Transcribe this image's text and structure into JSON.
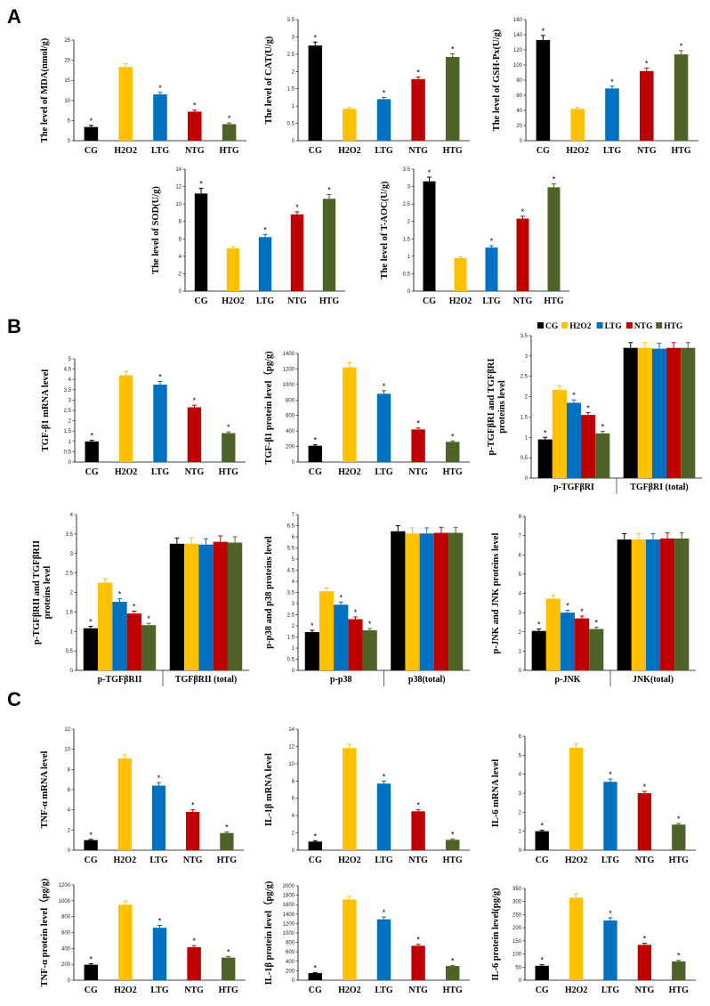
{
  "sections": {
    "a": "A",
    "b": "B",
    "c": "C"
  },
  "colors": {
    "CG": "#000000",
    "H2O2": "#ffc000",
    "LTG": "#0070c0",
    "NTG": "#c00000",
    "HTG": "#4f6228"
  },
  "legend": [
    "CG",
    "H2O2",
    "LTG",
    "NTG",
    "HTG"
  ],
  "chart_data": [
    {
      "id": "mda",
      "type": "bar",
      "section": "A",
      "ylabel": "The level of MDA(nmol/g)",
      "categories": [
        "CG",
        "H2O2",
        "LTG",
        "NTG",
        "HTG"
      ],
      "values": [
        3.4,
        18.3,
        11.5,
        7.2,
        4.1
      ],
      "errors": [
        0.4,
        0.8,
        0.5,
        0.4,
        0.3
      ],
      "stars": [
        true,
        false,
        true,
        true,
        true
      ],
      "ylim": [
        0,
        25
      ],
      "yticks": [
        0,
        5,
        10,
        15,
        20,
        25
      ]
    },
    {
      "id": "cat",
      "type": "bar",
      "section": "A",
      "ylabel": "The level of CAT(U/g)",
      "categories": [
        "CG",
        "H2O2",
        "LTG",
        "NTG",
        "HTG"
      ],
      "values": [
        2.75,
        0.92,
        1.2,
        1.78,
        2.42
      ],
      "errors": [
        0.1,
        0.04,
        0.05,
        0.06,
        0.09
      ],
      "stars": [
        true,
        false,
        true,
        true,
        true
      ],
      "ylim": [
        0,
        3.5
      ],
      "yticks": [
        0,
        0.5,
        1,
        1.5,
        2,
        2.5,
        3,
        3.5
      ]
    },
    {
      "id": "gsh",
      "type": "bar",
      "section": "A",
      "ylabel": "The level of GSH-Px(U/g)",
      "categories": [
        "CG",
        "H2O2",
        "LTG",
        "NTG",
        "HTG"
      ],
      "values": [
        133,
        42,
        69,
        92,
        114
      ],
      "errors": [
        6,
        2,
        3,
        4,
        5
      ],
      "stars": [
        true,
        false,
        true,
        true,
        true
      ],
      "ylim": [
        0,
        160
      ],
      "yticks": [
        0,
        20,
        40,
        60,
        80,
        100,
        120,
        140,
        160
      ]
    },
    {
      "id": "sod",
      "type": "bar",
      "section": "A",
      "ylabel": "The level of SOD(U/g)",
      "categories": [
        "CG",
        "H2O2",
        "LTG",
        "NTG",
        "HTG"
      ],
      "values": [
        11.2,
        4.9,
        6.2,
        8.8,
        10.6
      ],
      "errors": [
        0.6,
        0.2,
        0.3,
        0.3,
        0.5
      ],
      "stars": [
        true,
        false,
        true,
        true,
        true
      ],
      "ylim": [
        0,
        14
      ],
      "yticks": [
        0,
        2,
        4,
        6,
        8,
        10,
        12,
        14
      ]
    },
    {
      "id": "taoc",
      "type": "bar",
      "section": "A",
      "ylabel": "The level of T-AOC(U/g)",
      "categories": [
        "CG",
        "H2O2",
        "LTG",
        "NTG",
        "HTG"
      ],
      "values": [
        3.15,
        0.95,
        1.25,
        2.08,
        2.98
      ],
      "errors": [
        0.12,
        0.04,
        0.05,
        0.07,
        0.1
      ],
      "stars": [
        true,
        false,
        true,
        true,
        true
      ],
      "ylim": [
        0,
        3.5
      ],
      "yticks": [
        0,
        0.5,
        1,
        1.5,
        2,
        2.5,
        3,
        3.5
      ]
    },
    {
      "id": "tgfmrna",
      "type": "bar",
      "section": "B",
      "ylabel": "TGF-β1 mRNA level",
      "categories": [
        "CG",
        "H2O2",
        "LTG",
        "NTG",
        "HTG"
      ],
      "values": [
        1.0,
        4.2,
        3.75,
        2.65,
        1.4
      ],
      "errors": [
        0.06,
        0.18,
        0.15,
        0.1,
        0.06
      ],
      "stars": [
        true,
        false,
        true,
        true,
        true
      ],
      "ylim": [
        0,
        5
      ],
      "yticks": [
        0,
        0.5,
        1,
        1.5,
        2,
        2.5,
        3,
        3.5,
        4,
        4.5,
        5
      ]
    },
    {
      "id": "tgfprot",
      "type": "bar",
      "section": "B",
      "ylabel": "TGF-β1 protein level（pg/g)",
      "categories": [
        "CG",
        "H2O2",
        "LTG",
        "NTG",
        "HTG"
      ],
      "values": [
        210,
        1220,
        880,
        420,
        260
      ],
      "errors": [
        12,
        60,
        40,
        20,
        12
      ],
      "stars": [
        true,
        false,
        true,
        true,
        true
      ],
      "ylim": [
        0,
        1400
      ],
      "yticks": [
        0,
        200,
        400,
        600,
        800,
        1000,
        1200,
        1400
      ]
    },
    {
      "id": "tgfbri",
      "type": "grouped",
      "section": "B",
      "ylabel": [
        "p-TGFβRI and TGFβRI",
        "proteins level"
      ],
      "groups": [
        "p-TGFβRI",
        "TGFβRI (total)"
      ],
      "legend_pos": "top",
      "series": [
        {
          "name": "CG",
          "values": [
            0.95,
            3.2
          ],
          "errors": [
            0.05,
            0.13
          ],
          "stars": [
            true,
            false
          ]
        },
        {
          "name": "H2O2",
          "values": [
            2.17,
            3.2
          ],
          "errors": [
            0.1,
            0.13
          ],
          "stars": [
            false,
            false
          ]
        },
        {
          "name": "LTG",
          "values": [
            1.85,
            3.18
          ],
          "errors": [
            0.07,
            0.13
          ],
          "stars": [
            true,
            false
          ]
        },
        {
          "name": "NTG",
          "values": [
            1.55,
            3.2
          ],
          "errors": [
            0.06,
            0.13
          ],
          "stars": [
            true,
            false
          ]
        },
        {
          "name": "HTG",
          "values": [
            1.1,
            3.2
          ],
          "errors": [
            0.05,
            0.13
          ],
          "stars": [
            true,
            false
          ]
        }
      ],
      "ylim": [
        0,
        3.5
      ],
      "yticks": [
        0,
        0.5,
        1,
        1.5,
        2,
        2.5,
        3,
        3.5
      ]
    },
    {
      "id": "tgfbrii",
      "type": "grouped",
      "section": "B",
      "ylabel": [
        "p-TGFβRII and TGFβRII",
        "proteins level"
      ],
      "groups": [
        "p-TGFβRII",
        "TGFβRII (total)"
      ],
      "series": [
        {
          "name": "CG",
          "values": [
            1.08,
            3.25
          ],
          "errors": [
            0.05,
            0.15
          ],
          "stars": [
            true,
            false
          ]
        },
        {
          "name": "H2O2",
          "values": [
            2.25,
            3.25
          ],
          "errors": [
            0.1,
            0.15
          ],
          "stars": [
            false,
            false
          ]
        },
        {
          "name": "LTG",
          "values": [
            1.76,
            3.23
          ],
          "errors": [
            0.08,
            0.15
          ],
          "stars": [
            true,
            false
          ]
        },
        {
          "name": "NTG",
          "values": [
            1.46,
            3.3
          ],
          "errors": [
            0.06,
            0.15
          ],
          "stars": [
            true,
            false
          ]
        },
        {
          "name": "HTG",
          "values": [
            1.16,
            3.28
          ],
          "errors": [
            0.05,
            0.15
          ],
          "stars": [
            true,
            false
          ]
        }
      ],
      "ylim": [
        0,
        4
      ],
      "yticks": [
        0,
        0.5,
        1,
        1.5,
        2,
        2.5,
        3,
        3.5,
        4
      ]
    },
    {
      "id": "p38",
      "type": "grouped",
      "section": "B",
      "ylabel": [
        "p-p38 and p38 proteins level"
      ],
      "groups": [
        "p-p38",
        "p38(total)"
      ],
      "series": [
        {
          "name": "CG",
          "values": [
            1.72,
            6.25
          ],
          "errors": [
            0.08,
            0.25
          ],
          "stars": [
            true,
            false
          ]
        },
        {
          "name": "H2O2",
          "values": [
            3.55,
            6.15
          ],
          "errors": [
            0.15,
            0.25
          ],
          "stars": [
            false,
            false
          ]
        },
        {
          "name": "LTG",
          "values": [
            2.95,
            6.15
          ],
          "errors": [
            0.12,
            0.25
          ],
          "stars": [
            true,
            false
          ]
        },
        {
          "name": "NTG",
          "values": [
            2.3,
            6.18
          ],
          "errors": [
            0.1,
            0.25
          ],
          "stars": [
            true,
            false
          ]
        },
        {
          "name": "HTG",
          "values": [
            1.8,
            6.18
          ],
          "errors": [
            0.08,
            0.25
          ],
          "stars": [
            true,
            false
          ]
        }
      ],
      "ylim": [
        0,
        7
      ],
      "yticks": [
        0,
        0.5,
        1,
        1.5,
        2,
        2.5,
        3,
        3.5,
        4,
        4.5,
        5,
        5.5,
        6,
        6.5,
        7
      ]
    },
    {
      "id": "jnk",
      "type": "grouped",
      "section": "B",
      "ylabel": [
        "p-JNK and JNK proteins level"
      ],
      "groups": [
        "p-JNK",
        "JNK(total)"
      ],
      "series": [
        {
          "name": "CG",
          "values": [
            2.05,
            6.8
          ],
          "errors": [
            0.1,
            0.3
          ],
          "stars": [
            true,
            false
          ]
        },
        {
          "name": "H2O2",
          "values": [
            3.72,
            6.8
          ],
          "errors": [
            0.18,
            0.3
          ],
          "stars": [
            false,
            false
          ]
        },
        {
          "name": "LTG",
          "values": [
            3.0,
            6.8
          ],
          "errors": [
            0.12,
            0.3
          ],
          "stars": [
            true,
            false
          ]
        },
        {
          "name": "NTG",
          "values": [
            2.7,
            6.85
          ],
          "errors": [
            0.12,
            0.3
          ],
          "stars": [
            true,
            false
          ]
        },
        {
          "name": "HTG",
          "values": [
            2.15,
            6.85
          ],
          "errors": [
            0.1,
            0.3
          ],
          "stars": [
            true,
            false
          ]
        }
      ],
      "ylim": [
        0,
        8
      ],
      "yticks": [
        0,
        1,
        2,
        3,
        4,
        5,
        6,
        7,
        8
      ]
    },
    {
      "id": "tnfmrna",
      "type": "bar",
      "section": "C",
      "ylabel": "TNF-α mRNA level",
      "categories": [
        "CG",
        "H2O2",
        "LTG",
        "NTG",
        "HTG"
      ],
      "values": [
        1.0,
        9.1,
        6.4,
        3.8,
        1.7
      ],
      "errors": [
        0.08,
        0.35,
        0.3,
        0.2,
        0.1
      ],
      "stars": [
        true,
        false,
        true,
        true,
        true
      ],
      "ylim": [
        0,
        12
      ],
      "yticks": [
        0,
        2,
        4,
        6,
        8,
        10,
        12
      ]
    },
    {
      "id": "il1mrna",
      "type": "bar",
      "section": "C",
      "ylabel": "IL-1β mRNA level",
      "categories": [
        "CG",
        "H2O2",
        "LTG",
        "NTG",
        "HTG"
      ],
      "values": [
        1.0,
        11.8,
        7.7,
        4.5,
        1.2
      ],
      "errors": [
        0.1,
        0.45,
        0.3,
        0.2,
        0.1
      ],
      "stars": [
        true,
        false,
        true,
        true,
        true
      ],
      "ylim": [
        0,
        14
      ],
      "yticks": [
        0,
        2,
        4,
        6,
        8,
        10,
        12,
        14
      ]
    },
    {
      "id": "il6mrna",
      "type": "bar",
      "section": "C",
      "ylabel": "IL-6 mRNA level",
      "categories": [
        "CG",
        "H2O2",
        "LTG",
        "NTG",
        "HTG"
      ],
      "values": [
        1.0,
        5.4,
        3.6,
        3.0,
        1.35
      ],
      "errors": [
        0.05,
        0.2,
        0.15,
        0.1,
        0.06
      ],
      "stars": [
        true,
        false,
        true,
        true,
        true
      ],
      "ylim": [
        0,
        6
      ],
      "yticks": [
        0,
        1,
        2,
        3,
        4,
        5,
        6
      ]
    },
    {
      "id": "tnfprot",
      "type": "bar",
      "section": "C",
      "ylabel": "TNF-α protein level（pg/g)",
      "categories": [
        "CG",
        "H2O2",
        "LTG",
        "NTG",
        "HTG"
      ],
      "values": [
        195,
        950,
        660,
        415,
        285
      ],
      "errors": [
        12,
        45,
        30,
        20,
        14
      ],
      "stars": [
        true,
        false,
        true,
        true,
        true
      ],
      "ylim": [
        0,
        1200
      ],
      "yticks": [
        0,
        200,
        400,
        600,
        800,
        1000,
        1200
      ]
    },
    {
      "id": "il1prot",
      "type": "bar",
      "section": "C",
      "ylabel": "IL-1β protein level（pg/g)",
      "categories": [
        "CG",
        "H2O2",
        "LTG",
        "NTG",
        "HTG"
      ],
      "values": [
        150,
        1710,
        1290,
        730,
        300
      ],
      "errors": [
        12,
        70,
        50,
        30,
        14
      ],
      "stars": [
        true,
        false,
        true,
        true,
        true
      ],
      "ylim": [
        0,
        2000
      ],
      "yticks": [
        0,
        200,
        400,
        600,
        800,
        1000,
        1200,
        1400,
        1600,
        1800,
        2000
      ]
    },
    {
      "id": "il6prot",
      "type": "bar",
      "section": "C",
      "ylabel": "IL-6 protein level(pg/g)",
      "categories": [
        "CG",
        "H2O2",
        "LTG",
        "NTG",
        "HTG"
      ],
      "values": [
        55,
        315,
        228,
        135,
        72
      ],
      "errors": [
        4,
        14,
        10,
        6,
        4
      ],
      "stars": [
        true,
        false,
        true,
        true,
        true
      ],
      "ylim": [
        0,
        350
      ],
      "yticks": [
        0,
        50,
        100,
        150,
        200,
        250,
        300,
        350
      ]
    }
  ]
}
